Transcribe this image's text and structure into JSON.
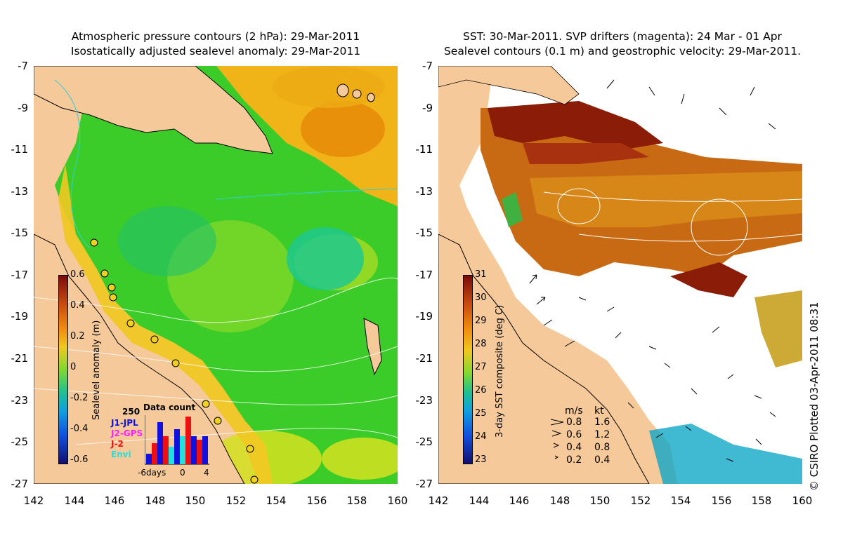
{
  "left_panel": {
    "title_line1": "Atmospheric pressure contours (2 hPa): 29-Mar-2011",
    "title_line2": "Isostatically adjusted sealevel anomaly: 29-Mar-2011",
    "y_ticks": [
      "-7",
      "-9",
      "-11",
      "-13",
      "-15",
      "-17",
      "-19",
      "-21",
      "-23",
      "-25",
      "-27"
    ],
    "x_ticks": [
      "142",
      "144",
      "146",
      "148",
      "150",
      "152",
      "154",
      "156",
      "158",
      "160"
    ],
    "colorbar": {
      "label": "Sealevel anomaly (m)",
      "ticks": [
        "0.6",
        "0.4",
        "0.2",
        "0",
        "-0.2",
        "-0.4",
        "-0.6"
      ]
    },
    "data_count": {
      "title": "Data count",
      "y_max": "250",
      "series": [
        {
          "name": "J1-JPL",
          "color": "#1010e0"
        },
        {
          "name": "J2-GPS",
          "color": "#ff20ff"
        },
        {
          "name": "J-2",
          "color": "#ee1010"
        },
        {
          "name": "Envi",
          "color": "#20e0e0"
        }
      ],
      "x_ticks": [
        "-6days",
        "0",
        "4"
      ]
    }
  },
  "right_panel": {
    "title_line1": "SST: 30-Mar-2011. SVP drifters (magenta): 24 Mar - 01 Apr",
    "title_line2": "Sealevel contours (0.1 m) and geostrophic velocity: 29-Mar-2011.",
    "y_ticks": [
      "-7",
      "-9",
      "-11",
      "-13",
      "-15",
      "-17",
      "-19",
      "-21",
      "-23",
      "-25",
      "-27"
    ],
    "x_ticks": [
      "142",
      "144",
      "146",
      "148",
      "150",
      "152",
      "154",
      "156",
      "158",
      "160"
    ],
    "colorbar": {
      "label": "3-day SST composite (deg C)",
      "ticks": [
        "31",
        "30",
        "29",
        "28",
        "27",
        "26",
        "25",
        "24",
        "23"
      ]
    },
    "speed_legend": {
      "header_ms": "m/s",
      "header_kt": "kt",
      "rows": [
        {
          "ms": "0.8",
          "kt": "1.6"
        },
        {
          "ms": "0.6",
          "kt": "1.2"
        },
        {
          "ms": "0.4",
          "kt": "0.8"
        },
        {
          "ms": "0.2",
          "kt": "0.4"
        }
      ]
    }
  },
  "copyright": "© CSIRO Plotted 03-Apr-2011 08:31",
  "colors": {
    "land": "#f5c99a",
    "sla_mid": "#3ccc2a",
    "sst_warm": "#c86a14",
    "sst_hot": "#8a1c08"
  }
}
